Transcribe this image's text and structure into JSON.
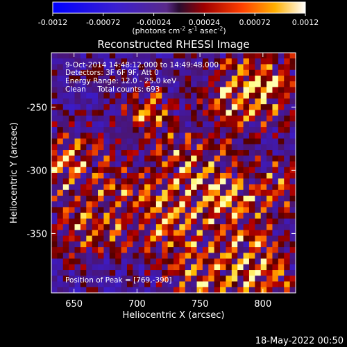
{
  "chart_data": {
    "type": "heatmap",
    "title": "Reconstructed RHESSI Image",
    "xlabel": "Heliocentric X (arcsec)",
    "ylabel": "Heliocentric Y (arcsec)",
    "xlim": [
      632,
      826
    ],
    "ylim": [
      -397,
      -207
    ],
    "x_ticks": [
      650,
      700,
      750,
      800
    ],
    "y_ticks": [
      -250,
      -300,
      -350
    ],
    "colorbar": {
      "ticks": [
        "-0.0012",
        "-0.00072",
        "-0.00024",
        "0.00024",
        "0.00072",
        "0.0012"
      ],
      "vmin": -0.0012,
      "vmax": 0.0012,
      "units_main": "(photons cm",
      "units_sup1": "-2",
      "units_mid": " s",
      "units_sup2": "-1",
      "units_mid2": " asec",
      "units_sup3": "-2",
      "units_end": ")"
    },
    "annotations": [
      "9-Oct-2014 14:48:12.000 to 14:49:48.000",
      "Detectors: 3F 6F 9F, Att 0",
      "Energy Range: 12.0 - 25.0 keV",
      "Clean     Total counts: 693"
    ],
    "peak_label": "Position of Peak = [769,-390]",
    "peak": [
      769,
      -390
    ],
    "grid": false
  },
  "footer": {
    "timestamp": "18-May-2022 00:50"
  }
}
